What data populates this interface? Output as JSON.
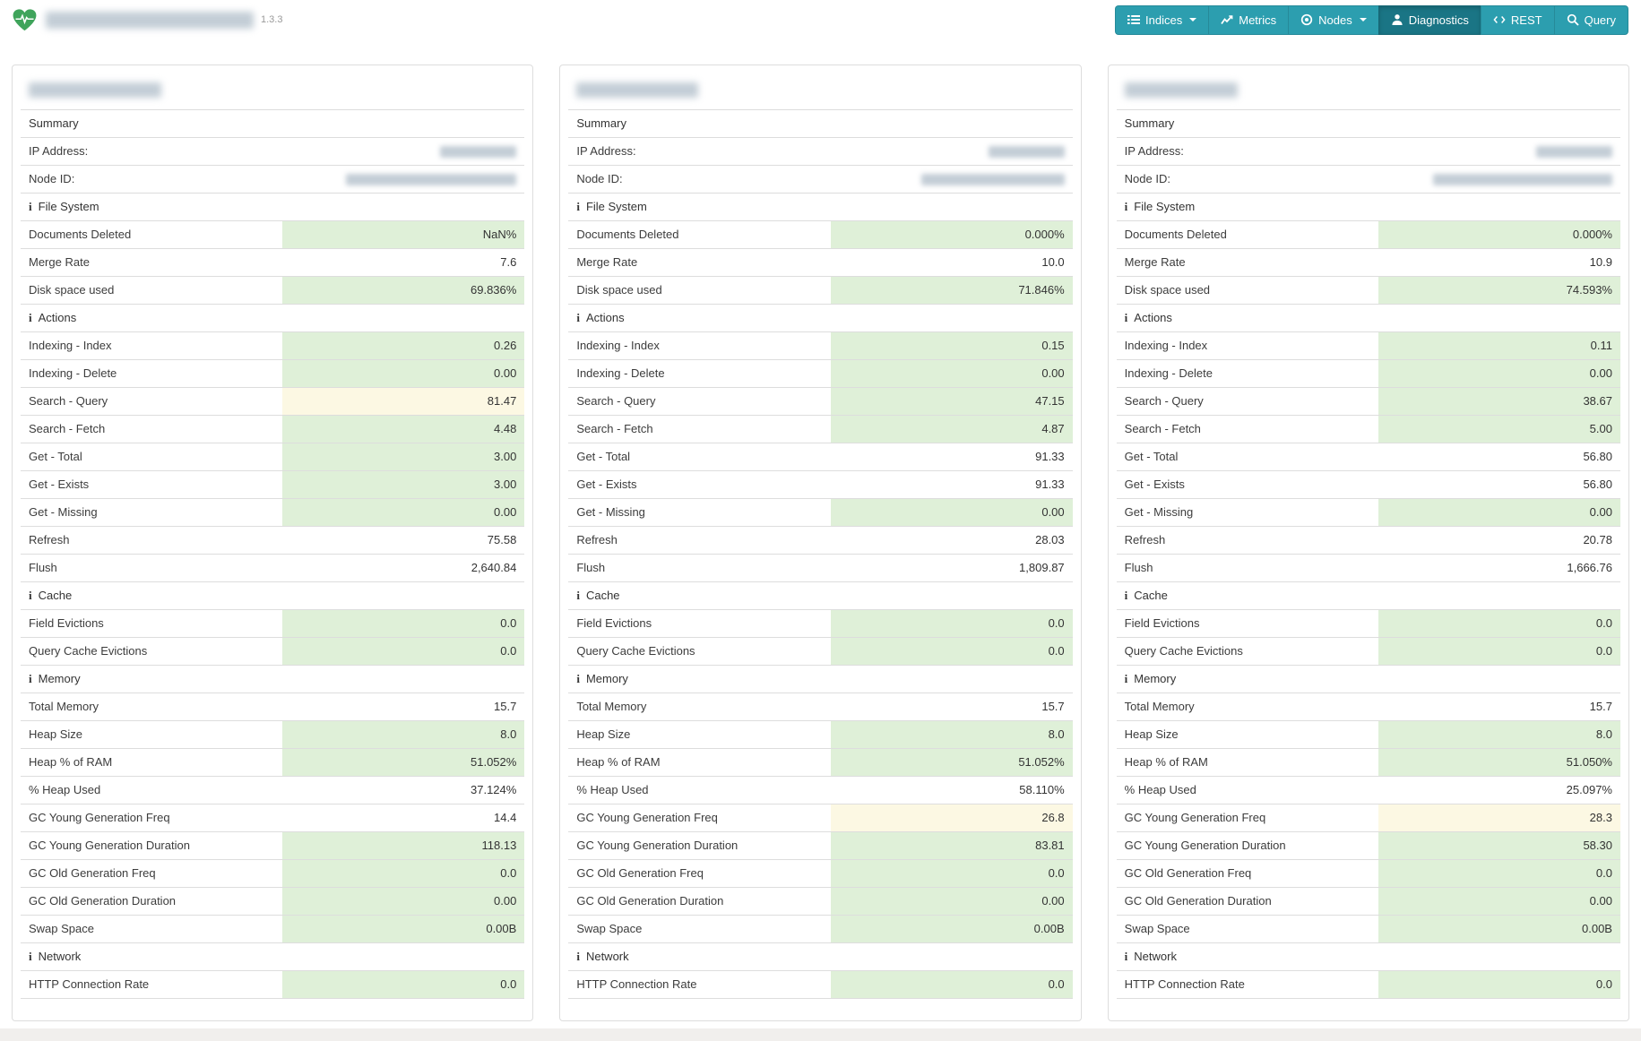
{
  "colors": {
    "accent": "#2c9eaf",
    "accent_active": "#1a7585",
    "success_bg": "#dff0d8",
    "warning_bg": "#fcf8e3",
    "logo_green": "#3fa45b",
    "row_border": "#dddddd",
    "panel_border": "#dddddd",
    "footer_bg": "#f1efed",
    "redact_fill": "#c3cdd6"
  },
  "ui": {
    "info_glyph": "i"
  },
  "brand": {
    "logo_icon": "heart-pulse-icon",
    "name_redacted": true,
    "version": "1.3.3"
  },
  "navbar": {
    "items": [
      {
        "label": "Indices",
        "icon": "list-icon",
        "caret": true,
        "active": false
      },
      {
        "label": "Metrics",
        "icon": "chart-icon",
        "caret": false,
        "active": false
      },
      {
        "label": "Nodes",
        "icon": "nodes-icon",
        "caret": true,
        "active": false
      },
      {
        "label": "Diagnostics",
        "icon": "diagnostics-icon",
        "caret": false,
        "active": true
      },
      {
        "label": "REST",
        "icon": "code-icon",
        "caret": false,
        "active": false
      },
      {
        "label": "Query",
        "icon": "search-icon",
        "caret": false,
        "active": false
      }
    ]
  },
  "panels": [
    {
      "title_redacted": true,
      "title_redact_width": 148,
      "rows": [
        {
          "type": "header",
          "label": "Summary"
        },
        {
          "type": "redacted",
          "label": "IP Address:",
          "redact_width": 85
        },
        {
          "type": "redacted",
          "label": "Node ID:",
          "redact_width": 190
        },
        {
          "type": "section",
          "label": "File System"
        },
        {
          "type": "metric",
          "label": "Documents Deleted",
          "value": "NaN%",
          "status": "success"
        },
        {
          "type": "metric",
          "label": "Merge Rate",
          "value": "7.6",
          "status": "plain"
        },
        {
          "type": "metric",
          "label": "Disk space used",
          "value": "69.836%",
          "status": "success"
        },
        {
          "type": "section",
          "label": "Actions"
        },
        {
          "type": "metric",
          "label": "Indexing - Index",
          "value": "0.26",
          "status": "success"
        },
        {
          "type": "metric",
          "label": "Indexing - Delete",
          "value": "0.00",
          "status": "success"
        },
        {
          "type": "metric",
          "label": "Search - Query",
          "value": "81.47",
          "status": "warning"
        },
        {
          "type": "metric",
          "label": "Search - Fetch",
          "value": "4.48",
          "status": "success"
        },
        {
          "type": "metric",
          "label": "Get - Total",
          "value": "3.00",
          "status": "success"
        },
        {
          "type": "metric",
          "label": "Get - Exists",
          "value": "3.00",
          "status": "success"
        },
        {
          "type": "metric",
          "label": "Get - Missing",
          "value": "0.00",
          "status": "success"
        },
        {
          "type": "metric",
          "label": "Refresh",
          "value": "75.58",
          "status": "plain"
        },
        {
          "type": "metric",
          "label": "Flush",
          "value": "2,640.84",
          "status": "plain"
        },
        {
          "type": "section",
          "label": "Cache"
        },
        {
          "type": "metric",
          "label": "Field Evictions",
          "value": "0.0",
          "status": "success"
        },
        {
          "type": "metric",
          "label": "Query Cache Evictions",
          "value": "0.0",
          "status": "success"
        },
        {
          "type": "section",
          "label": "Memory"
        },
        {
          "type": "metric",
          "label": "Total Memory",
          "value": "15.7",
          "status": "plain"
        },
        {
          "type": "metric",
          "label": "Heap Size",
          "value": "8.0",
          "status": "success"
        },
        {
          "type": "metric",
          "label": "Heap % of RAM",
          "value": "51.052%",
          "status": "success"
        },
        {
          "type": "metric",
          "label": "% Heap Used",
          "value": "37.124%",
          "status": "plain"
        },
        {
          "type": "metric",
          "label": "GC Young Generation Freq",
          "value": "14.4",
          "status": "plain"
        },
        {
          "type": "metric",
          "label": "GC Young Generation Duration",
          "value": "118.13",
          "status": "success"
        },
        {
          "type": "metric",
          "label": "GC Old Generation Freq",
          "value": "0.0",
          "status": "success"
        },
        {
          "type": "metric",
          "label": "GC Old Generation Duration",
          "value": "0.00",
          "status": "success"
        },
        {
          "type": "metric",
          "label": "Swap Space",
          "value": "0.00B",
          "status": "success"
        },
        {
          "type": "section",
          "label": "Network"
        },
        {
          "type": "metric",
          "label": "HTTP Connection Rate",
          "value": "0.0",
          "status": "success"
        }
      ]
    },
    {
      "title_redacted": true,
      "title_redact_width": 136,
      "rows": [
        {
          "type": "header",
          "label": "Summary"
        },
        {
          "type": "redacted",
          "label": "IP Address:",
          "redact_width": 85
        },
        {
          "type": "redacted",
          "label": "Node ID:",
          "redact_width": 160
        },
        {
          "type": "section",
          "label": "File System"
        },
        {
          "type": "metric",
          "label": "Documents Deleted",
          "value": "0.000%",
          "status": "success"
        },
        {
          "type": "metric",
          "label": "Merge Rate",
          "value": "10.0",
          "status": "plain"
        },
        {
          "type": "metric",
          "label": "Disk space used",
          "value": "71.846%",
          "status": "success"
        },
        {
          "type": "section",
          "label": "Actions"
        },
        {
          "type": "metric",
          "label": "Indexing - Index",
          "value": "0.15",
          "status": "success"
        },
        {
          "type": "metric",
          "label": "Indexing - Delete",
          "value": "0.00",
          "status": "success"
        },
        {
          "type": "metric",
          "label": "Search - Query",
          "value": "47.15",
          "status": "success"
        },
        {
          "type": "metric",
          "label": "Search - Fetch",
          "value": "4.87",
          "status": "success"
        },
        {
          "type": "metric",
          "label": "Get - Total",
          "value": "91.33",
          "status": "plain"
        },
        {
          "type": "metric",
          "label": "Get - Exists",
          "value": "91.33",
          "status": "plain"
        },
        {
          "type": "metric",
          "label": "Get - Missing",
          "value": "0.00",
          "status": "success"
        },
        {
          "type": "metric",
          "label": "Refresh",
          "value": "28.03",
          "status": "plain"
        },
        {
          "type": "metric",
          "label": "Flush",
          "value": "1,809.87",
          "status": "plain"
        },
        {
          "type": "section",
          "label": "Cache"
        },
        {
          "type": "metric",
          "label": "Field Evictions",
          "value": "0.0",
          "status": "success"
        },
        {
          "type": "metric",
          "label": "Query Cache Evictions",
          "value": "0.0",
          "status": "success"
        },
        {
          "type": "section",
          "label": "Memory"
        },
        {
          "type": "metric",
          "label": "Total Memory",
          "value": "15.7",
          "status": "plain"
        },
        {
          "type": "metric",
          "label": "Heap Size",
          "value": "8.0",
          "status": "success"
        },
        {
          "type": "metric",
          "label": "Heap % of RAM",
          "value": "51.052%",
          "status": "success"
        },
        {
          "type": "metric",
          "label": "% Heap Used",
          "value": "58.110%",
          "status": "plain"
        },
        {
          "type": "metric",
          "label": "GC Young Generation Freq",
          "value": "26.8",
          "status": "warning"
        },
        {
          "type": "metric",
          "label": "GC Young Generation Duration",
          "value": "83.81",
          "status": "success"
        },
        {
          "type": "metric",
          "label": "GC Old Generation Freq",
          "value": "0.0",
          "status": "success"
        },
        {
          "type": "metric",
          "label": "GC Old Generation Duration",
          "value": "0.00",
          "status": "success"
        },
        {
          "type": "metric",
          "label": "Swap Space",
          "value": "0.00B",
          "status": "success"
        },
        {
          "type": "section",
          "label": "Network"
        },
        {
          "type": "metric",
          "label": "HTTP Connection Rate",
          "value": "0.0",
          "status": "success"
        }
      ]
    },
    {
      "title_redacted": true,
      "title_redact_width": 126,
      "rows": [
        {
          "type": "header",
          "label": "Summary"
        },
        {
          "type": "redacted",
          "label": "IP Address:",
          "redact_width": 85
        },
        {
          "type": "redacted",
          "label": "Node ID:",
          "redact_width": 200
        },
        {
          "type": "section",
          "label": "File System"
        },
        {
          "type": "metric",
          "label": "Documents Deleted",
          "value": "0.000%",
          "status": "success"
        },
        {
          "type": "metric",
          "label": "Merge Rate",
          "value": "10.9",
          "status": "plain"
        },
        {
          "type": "metric",
          "label": "Disk space used",
          "value": "74.593%",
          "status": "success"
        },
        {
          "type": "section",
          "label": "Actions"
        },
        {
          "type": "metric",
          "label": "Indexing - Index",
          "value": "0.11",
          "status": "success"
        },
        {
          "type": "metric",
          "label": "Indexing - Delete",
          "value": "0.00",
          "status": "success"
        },
        {
          "type": "metric",
          "label": "Search - Query",
          "value": "38.67",
          "status": "success"
        },
        {
          "type": "metric",
          "label": "Search - Fetch",
          "value": "5.00",
          "status": "success"
        },
        {
          "type": "metric",
          "label": "Get - Total",
          "value": "56.80",
          "status": "plain"
        },
        {
          "type": "metric",
          "label": "Get - Exists",
          "value": "56.80",
          "status": "plain"
        },
        {
          "type": "metric",
          "label": "Get - Missing",
          "value": "0.00",
          "status": "success"
        },
        {
          "type": "metric",
          "label": "Refresh",
          "value": "20.78",
          "status": "plain"
        },
        {
          "type": "metric",
          "label": "Flush",
          "value": "1,666.76",
          "status": "plain"
        },
        {
          "type": "section",
          "label": "Cache"
        },
        {
          "type": "metric",
          "label": "Field Evictions",
          "value": "0.0",
          "status": "success"
        },
        {
          "type": "metric",
          "label": "Query Cache Evictions",
          "value": "0.0",
          "status": "success"
        },
        {
          "type": "section",
          "label": "Memory"
        },
        {
          "type": "metric",
          "label": "Total Memory",
          "value": "15.7",
          "status": "plain"
        },
        {
          "type": "metric",
          "label": "Heap Size",
          "value": "8.0",
          "status": "success"
        },
        {
          "type": "metric",
          "label": "Heap % of RAM",
          "value": "51.050%",
          "status": "success"
        },
        {
          "type": "metric",
          "label": "% Heap Used",
          "value": "25.097%",
          "status": "plain"
        },
        {
          "type": "metric",
          "label": "GC Young Generation Freq",
          "value": "28.3",
          "status": "warning"
        },
        {
          "type": "metric",
          "label": "GC Young Generation Duration",
          "value": "58.30",
          "status": "success"
        },
        {
          "type": "metric",
          "label": "GC Old Generation Freq",
          "value": "0.0",
          "status": "success"
        },
        {
          "type": "metric",
          "label": "GC Old Generation Duration",
          "value": "0.00",
          "status": "success"
        },
        {
          "type": "metric",
          "label": "Swap Space",
          "value": "0.00B",
          "status": "success"
        },
        {
          "type": "section",
          "label": "Network"
        },
        {
          "type": "metric",
          "label": "HTTP Connection Rate",
          "value": "0.0",
          "status": "success"
        }
      ]
    }
  ]
}
